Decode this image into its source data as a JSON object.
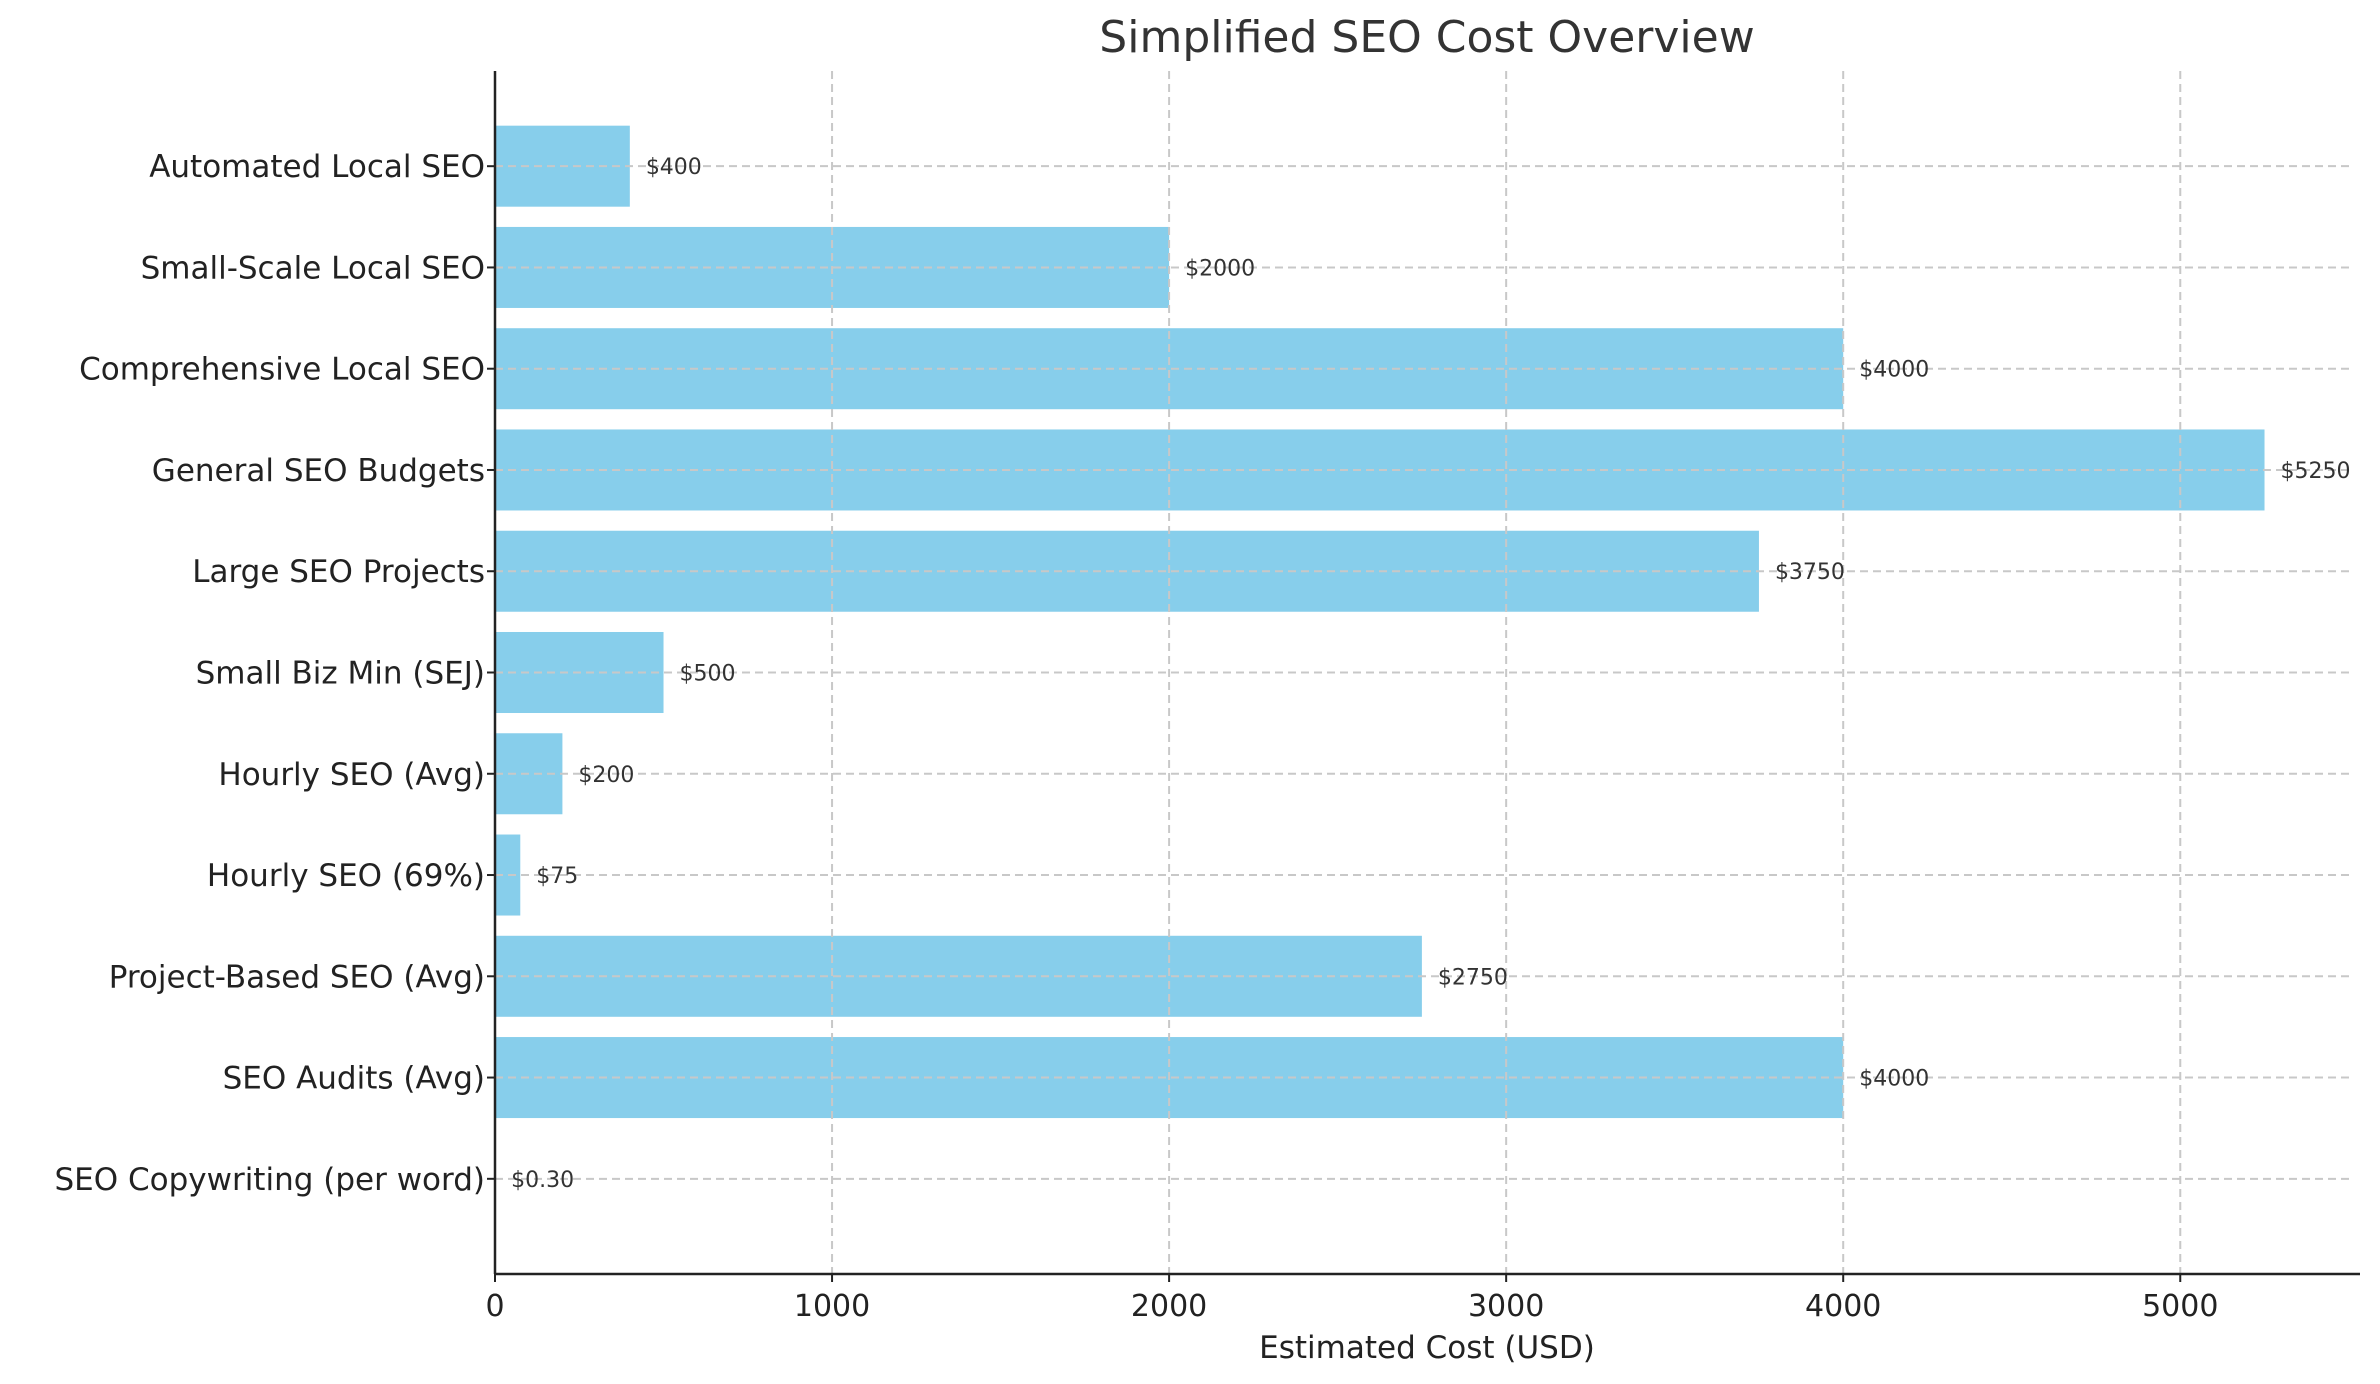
{
  "chart_data": {
    "type": "bar",
    "orientation": "horizontal",
    "title": "Simplified SEO Cost Overview",
    "xlabel": "Estimated Cost (USD)",
    "ylabel": "",
    "xlim": [
      0,
      5512.5
    ],
    "xticks": [
      0,
      1000,
      2000,
      3000,
      4000,
      5000
    ],
    "grid": true,
    "bar_color": "#87CEEB",
    "categories": [
      "SEO Copywriting (per word)",
      "SEO Audits (Avg)",
      "Project-Based SEO (Avg)",
      "Hourly SEO (69%)",
      "Hourly SEO (Avg)",
      "Small Biz Min (SEJ)",
      "Large SEO Projects",
      "General SEO Budgets",
      "Comprehensive Local SEO",
      "Small-Scale Local SEO",
      "Automated Local SEO"
    ],
    "values": [
      0.3,
      4000,
      2750,
      75,
      200,
      500,
      3750,
      5250,
      4000,
      2000,
      400
    ],
    "data_labels": [
      "$0.30",
      "$4000",
      "$2750",
      "$75",
      "$200",
      "$500",
      "$3750",
      "$5250",
      "$4000",
      "$2000",
      "$400"
    ]
  }
}
